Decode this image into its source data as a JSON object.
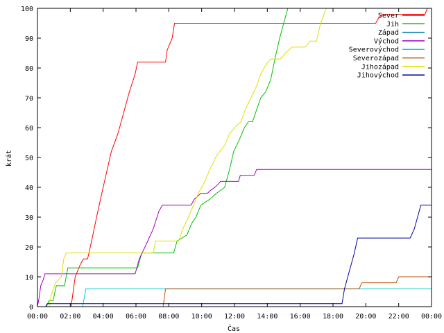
{
  "chart_data": {
    "type": "line",
    "title": "",
    "xlabel": "Čas",
    "ylabel": "krát",
    "xlim": [
      0,
      24
    ],
    "ylim": [
      0,
      100
    ],
    "x_ticks": [
      {
        "value": 0,
        "label": "00:00"
      },
      {
        "value": 2,
        "label": "02:00"
      },
      {
        "value": 4,
        "label": "04:00"
      },
      {
        "value": 6,
        "label": "06:00"
      },
      {
        "value": 8,
        "label": "08:00"
      },
      {
        "value": 10,
        "label": "10:00"
      },
      {
        "value": 12,
        "label": "12:00"
      },
      {
        "value": 14,
        "label": "14:00"
      },
      {
        "value": 16,
        "label": "16:00"
      },
      {
        "value": 18,
        "label": "18:00"
      },
      {
        "value": 20,
        "label": "20:00"
      },
      {
        "value": 22,
        "label": "22:00"
      },
      {
        "value": 24,
        "label": "00:00"
      }
    ],
    "y_ticks": [
      0,
      10,
      20,
      30,
      40,
      50,
      60,
      70,
      80,
      90,
      100
    ],
    "grid": false,
    "legend_position": "top-right",
    "series": [
      {
        "name": "Sever",
        "color": "#ff0000",
        "points": [
          [
            0,
            0
          ],
          [
            2.05,
            0
          ],
          [
            2.3,
            10
          ],
          [
            2.6,
            14
          ],
          [
            2.8,
            16
          ],
          [
            3.05,
            16
          ],
          [
            3.3,
            22
          ],
          [
            3.6,
            30
          ],
          [
            4.0,
            40
          ],
          [
            4.5,
            52
          ],
          [
            4.9,
            58
          ],
          [
            5.3,
            66
          ],
          [
            5.6,
            72
          ],
          [
            5.95,
            78
          ],
          [
            6.1,
            82
          ],
          [
            7.8,
            82
          ],
          [
            7.9,
            86
          ],
          [
            8.2,
            90
          ],
          [
            8.35,
            95
          ],
          [
            20.6,
            95
          ],
          [
            20.8,
            97
          ],
          [
            21.0,
            98
          ],
          [
            23.6,
            98
          ],
          [
            23.75,
            100
          ],
          [
            24,
            100
          ]
        ]
      },
      {
        "name": "Jih",
        "color": "#00c000",
        "points": [
          [
            0,
            0
          ],
          [
            0.55,
            0
          ],
          [
            0.7,
            2
          ],
          [
            0.95,
            2
          ],
          [
            1.15,
            7
          ],
          [
            1.65,
            7
          ],
          [
            1.85,
            13
          ],
          [
            6.1,
            13
          ],
          [
            6.35,
            18
          ],
          [
            8.3,
            18
          ],
          [
            8.5,
            22
          ],
          [
            9.1,
            24
          ],
          [
            9.4,
            28
          ],
          [
            9.65,
            30
          ],
          [
            9.95,
            34
          ],
          [
            10.5,
            36
          ],
          [
            10.9,
            38
          ],
          [
            11.4,
            40
          ],
          [
            11.7,
            46
          ],
          [
            11.95,
            52
          ],
          [
            12.3,
            56
          ],
          [
            12.6,
            60
          ],
          [
            12.85,
            62
          ],
          [
            13.1,
            62
          ],
          [
            13.35,
            66
          ],
          [
            13.6,
            70
          ],
          [
            13.9,
            72
          ],
          [
            14.2,
            76
          ],
          [
            14.5,
            84
          ],
          [
            14.75,
            90
          ],
          [
            14.95,
            94
          ],
          [
            15.25,
            100
          ],
          [
            24,
            100
          ]
        ]
      },
      {
        "name": "Západ",
        "color": "#0080a0",
        "points": [
          [
            0,
            0
          ],
          [
            24,
            0
          ]
        ]
      },
      {
        "name": "Východ",
        "color": "#a000c0",
        "points": [
          [
            0,
            0
          ],
          [
            0.1,
            3
          ],
          [
            0.2,
            7
          ],
          [
            0.35,
            9
          ],
          [
            0.45,
            11
          ],
          [
            5.95,
            11
          ],
          [
            6.2,
            16
          ],
          [
            6.55,
            20
          ],
          [
            7.05,
            26
          ],
          [
            7.4,
            32
          ],
          [
            7.6,
            34
          ],
          [
            9.35,
            34
          ],
          [
            9.55,
            36
          ],
          [
            9.95,
            38
          ],
          [
            10.35,
            38
          ],
          [
            10.55,
            39
          ],
          [
            10.8,
            40
          ],
          [
            11.0,
            41
          ],
          [
            11.15,
            42
          ],
          [
            12.25,
            42
          ],
          [
            12.35,
            44
          ],
          [
            13.2,
            44
          ],
          [
            13.35,
            46
          ],
          [
            24,
            46
          ]
        ]
      },
      {
        "name": "Severovýchod",
        "color": "#00c8e0",
        "points": [
          [
            0,
            0
          ],
          [
            2.75,
            0
          ],
          [
            2.95,
            6
          ],
          [
            24,
            6
          ]
        ]
      },
      {
        "name": "Severozápad",
        "color": "#c05000",
        "points": [
          [
            0,
            0
          ],
          [
            7.65,
            0
          ],
          [
            7.8,
            6
          ],
          [
            19.6,
            6
          ],
          [
            19.75,
            8
          ],
          [
            21.85,
            8
          ],
          [
            22.0,
            10
          ],
          [
            24,
            10
          ]
        ]
      },
      {
        "name": "Jihozápad",
        "color": "#e0e000",
        "points": [
          [
            0,
            0
          ],
          [
            0.7,
            0
          ],
          [
            0.85,
            4
          ],
          [
            1.1,
            8
          ],
          [
            1.45,
            10
          ],
          [
            1.6,
            16
          ],
          [
            1.75,
            18
          ],
          [
            7.05,
            18
          ],
          [
            7.2,
            22
          ],
          [
            8.6,
            22
          ],
          [
            8.85,
            26
          ],
          [
            9.2,
            30
          ],
          [
            9.5,
            34
          ],
          [
            9.8,
            38
          ],
          [
            10.2,
            42
          ],
          [
            10.5,
            46
          ],
          [
            10.85,
            50
          ],
          [
            11.1,
            52
          ],
          [
            11.4,
            54
          ],
          [
            11.7,
            58
          ],
          [
            12.0,
            60
          ],
          [
            12.4,
            62
          ],
          [
            12.65,
            66
          ],
          [
            13.0,
            70
          ],
          [
            13.35,
            74
          ],
          [
            13.6,
            78
          ],
          [
            13.9,
            81
          ],
          [
            14.2,
            83
          ],
          [
            14.8,
            83
          ],
          [
            15.1,
            85
          ],
          [
            15.5,
            87
          ],
          [
            16.3,
            87
          ],
          [
            16.6,
            89
          ],
          [
            17.0,
            89
          ],
          [
            17.2,
            94
          ],
          [
            17.45,
            98
          ],
          [
            17.6,
            100
          ],
          [
            24,
            100
          ]
        ]
      },
      {
        "name": "Jihovýchod",
        "color": "#0000a0",
        "points": [
          [
            0,
            0
          ],
          [
            0.5,
            0
          ],
          [
            0.6,
            1
          ],
          [
            18.55,
            1
          ],
          [
            18.7,
            6
          ],
          [
            19.0,
            12
          ],
          [
            19.3,
            18
          ],
          [
            19.5,
            23
          ],
          [
            22.7,
            23
          ],
          [
            22.95,
            26
          ],
          [
            23.15,
            30
          ],
          [
            23.35,
            34
          ],
          [
            24,
            34
          ]
        ]
      }
    ]
  }
}
